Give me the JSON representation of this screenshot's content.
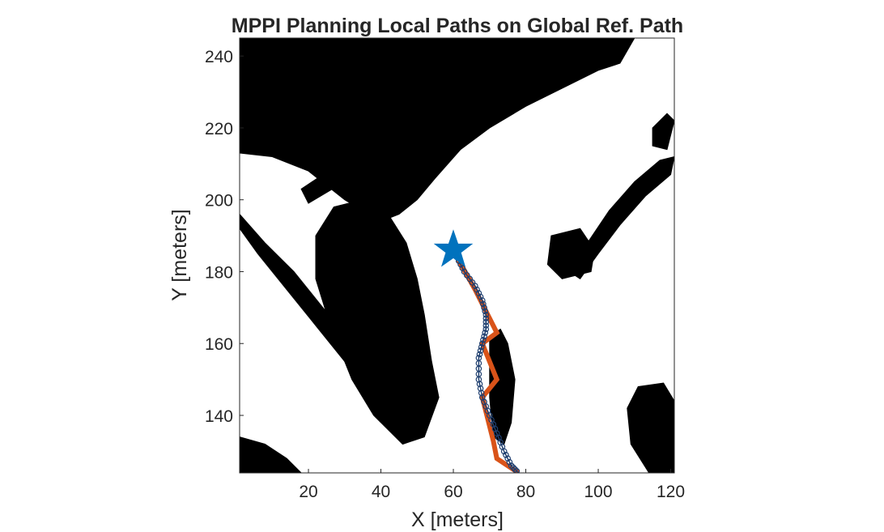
{
  "chart_data": {
    "type": "line",
    "title": "MPPI Planning Local Paths on Global Ref. Path",
    "xlabel": "X [meters]",
    "ylabel": "Y [meters]",
    "xlim": [
      1,
      121
    ],
    "ylim": [
      124,
      245
    ],
    "xticks": [
      20,
      40,
      60,
      80,
      100,
      120
    ],
    "yticks": [
      140,
      160,
      180,
      200,
      220,
      240
    ],
    "grid": false,
    "background": "binary occupancy map (black = occupied, white = free)",
    "map_obstacles": [
      {
        "name": "upper-left-obstacle-mass",
        "points": [
          [
            1,
            245
          ],
          [
            110,
            245
          ],
          [
            106,
            238
          ],
          [
            100,
            236
          ],
          [
            92,
            232
          ],
          [
            80,
            226
          ],
          [
            70,
            220
          ],
          [
            62,
            214
          ],
          [
            55,
            206
          ],
          [
            50,
            200
          ],
          [
            45,
            196
          ],
          [
            40,
            194
          ],
          [
            30,
            200
          ],
          [
            20,
            208
          ],
          [
            10,
            212
          ],
          [
            1,
            213
          ]
        ]
      },
      {
        "name": "upper-diagonal-band",
        "points": [
          [
            18,
            203
          ],
          [
            30,
            211
          ],
          [
            45,
            222
          ],
          [
            60,
            232
          ],
          [
            76,
            240
          ],
          [
            92,
            243
          ],
          [
            90,
            238
          ],
          [
            74,
            232
          ],
          [
            58,
            224
          ],
          [
            44,
            215
          ],
          [
            30,
            205
          ],
          [
            20,
            199
          ]
        ]
      },
      {
        "name": "central-peninsula",
        "points": [
          [
            27,
            198
          ],
          [
            35,
            200
          ],
          [
            42,
            196
          ],
          [
            47,
            188
          ],
          [
            50,
            178
          ],
          [
            52,
            168
          ],
          [
            54,
            155
          ],
          [
            56,
            145
          ],
          [
            52,
            134
          ],
          [
            46,
            132
          ],
          [
            38,
            140
          ],
          [
            32,
            150
          ],
          [
            26,
            165
          ],
          [
            22,
            178
          ],
          [
            22,
            190
          ]
        ]
      },
      {
        "name": "lower-left-diagonal-strip",
        "points": [
          [
            1,
            192
          ],
          [
            6,
            185
          ],
          [
            14,
            175
          ],
          [
            22,
            165
          ],
          [
            30,
            155
          ],
          [
            38,
            145
          ],
          [
            46,
            136
          ],
          [
            48,
            140
          ],
          [
            40,
            150
          ],
          [
            32,
            160
          ],
          [
            24,
            170
          ],
          [
            16,
            180
          ],
          [
            8,
            188
          ],
          [
            1,
            196
          ]
        ]
      },
      {
        "name": "lower-left-corner",
        "points": [
          [
            1,
            134
          ],
          [
            8,
            132
          ],
          [
            14,
            128
          ],
          [
            18,
            124
          ],
          [
            1,
            124
          ]
        ]
      },
      {
        "name": "long-right-strip",
        "points": [
          [
            70,
            162
          ],
          [
            73,
            164
          ],
          [
            75,
            160
          ],
          [
            77,
            150
          ],
          [
            76,
            138
          ],
          [
            74,
            132
          ],
          [
            71,
            134
          ],
          [
            70,
            145
          ]
        ]
      },
      {
        "name": "right-upper-edge-band",
        "points": [
          [
            95,
            178
          ],
          [
            100,
            185
          ],
          [
            106,
            193
          ],
          [
            113,
            201
          ],
          [
            120,
            207
          ],
          [
            121,
            212
          ],
          [
            117,
            211
          ],
          [
            110,
            205
          ],
          [
            103,
            197
          ],
          [
            97,
            188
          ],
          [
            92,
            180
          ]
        ]
      },
      {
        "name": "right-mid-clutter",
        "points": [
          [
            87,
            190
          ],
          [
            95,
            192
          ],
          [
            99,
            186
          ],
          [
            98,
            180
          ],
          [
            90,
            178
          ],
          [
            86,
            182
          ]
        ]
      },
      {
        "name": "right-small-blob",
        "points": [
          [
            115,
            220
          ],
          [
            119,
            224
          ],
          [
            121,
            222
          ],
          [
            119,
            214
          ],
          [
            115,
            215
          ]
        ]
      },
      {
        "name": "lower-right-clusters",
        "points": [
          [
            111,
            148
          ],
          [
            118,
            149
          ],
          [
            121,
            144
          ],
          [
            121,
            124
          ],
          [
            114,
            124
          ],
          [
            109,
            132
          ],
          [
            108,
            142
          ]
        ]
      }
    ],
    "series": [
      {
        "color": "#d95319",
        "line": "thick-solid",
        "x": [
          61,
          66,
          72,
          68,
          72,
          68,
          71,
          72,
          78
        ],
        "y": [
          184,
          175,
          163,
          160,
          150,
          145,
          133,
          128,
          124
        ]
      },
      {
        "color": "#1f3f6f",
        "line": "circle-markers",
        "x": [
          61,
          63,
          66,
          68,
          69,
          69,
          68,
          67,
          67,
          68,
          70,
          72,
          74,
          76,
          78
        ],
        "y": [
          184,
          180,
          176,
          172,
          168,
          164,
          160,
          156,
          150,
          145,
          140,
          135,
          130,
          126,
          124
        ]
      }
    ],
    "markers": [
      {
        "shape": "star",
        "color": "#0072bd",
        "x": 60,
        "y": 186
      }
    ]
  }
}
